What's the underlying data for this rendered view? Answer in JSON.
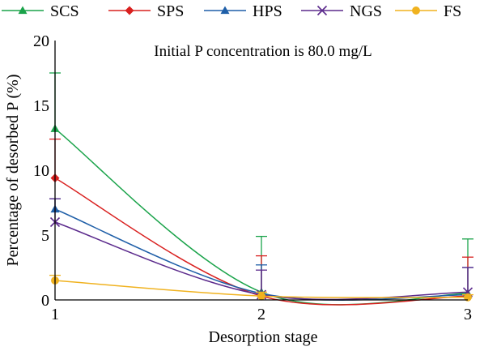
{
  "chart_data": {
    "type": "line",
    "annotation": "Initial P concentration is 80.0 mg/L",
    "xlabel": "Desorption stage",
    "ylabel": "Percentage of desorbed P (%)",
    "x": [
      1,
      2,
      3
    ],
    "x_tick_labels": [
      "1",
      "2",
      "3"
    ],
    "xlim": [
      1,
      3
    ],
    "ylim": [
      0,
      20
    ],
    "y_ticks": [
      0,
      5,
      10,
      15,
      20
    ],
    "y_tick_labels": [
      "0",
      "5",
      "10",
      "15",
      "20"
    ],
    "grid": false,
    "legend_placement": "top",
    "series": [
      {
        "name": "SCS",
        "color": "#1aa34a",
        "marker": "triangle",
        "values": [
          13.2,
          0.6,
          0.5
        ],
        "errors": [
          4.3,
          4.3,
          4.2
        ]
      },
      {
        "name": "SPS",
        "color": "#d9201f",
        "marker": "diamond",
        "values": [
          9.4,
          0.3,
          0.3
        ],
        "errors": [
          3.0,
          3.1,
          3.0
        ]
      },
      {
        "name": "HPS",
        "color": "#1f5fa8",
        "marker": "triangle",
        "values": [
          7.0,
          0.5,
          0.4
        ],
        "errors": [
          0.8,
          2.2,
          2.1
        ]
      },
      {
        "name": "NGS",
        "color": "#5b2a8c",
        "marker": "x",
        "values": [
          6.0,
          0.4,
          0.6
        ],
        "errors": [
          1.8,
          1.9,
          1.9
        ]
      },
      {
        "name": "FS",
        "color": "#f0b21f",
        "marker": "circle",
        "values": [
          1.5,
          0.3,
          0.2
        ],
        "errors": [
          0.4,
          0.3,
          0.2
        ]
      }
    ]
  }
}
